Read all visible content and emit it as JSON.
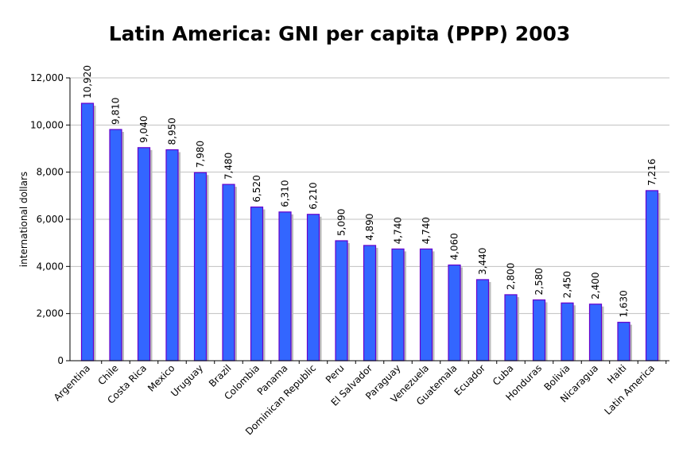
{
  "chart_data": {
    "type": "bar",
    "title": "Latin America: GNI per capita (PPP) 2003",
    "xlabel": "",
    "ylabel": "international dollars",
    "ylim": [
      0,
      12000
    ],
    "yticks": [
      "0",
      "2,000",
      "4,000",
      "6,000",
      "8,000",
      "10,000",
      "12,000"
    ],
    "grid": true,
    "legend": "none",
    "categories": [
      "Argentina",
      "Chile",
      "Costa Rica",
      "Mexico",
      "Uruguay",
      "Brazil",
      "Colombia",
      "Panama",
      "Dominican Republic",
      "Peru",
      "El Salvador",
      "Paraguay",
      "Venezuela",
      "Guatemala",
      "Ecuador",
      "Cuba",
      "Honduras",
      "Bolivia",
      "Nicaragua",
      "Haiti",
      "Latin America"
    ],
    "values": [
      10920,
      9810,
      9040,
      8950,
      7980,
      7480,
      6520,
      6310,
      6210,
      5090,
      4890,
      4740,
      4740,
      4060,
      3440,
      2800,
      2580,
      2450,
      2400,
      1630,
      7216
    ],
    "data_labels": [
      "10,920",
      "9,810",
      "9,040",
      "8,950",
      "7,980",
      "7,480",
      "6,520",
      "6,310",
      "6,210",
      "5,090",
      "4,890",
      "4,740",
      "4,740",
      "4,060",
      "3,440",
      "2,800",
      "2,580",
      "2,450",
      "2,400",
      "1,630",
      "7,216"
    ],
    "colors": {
      "bar_fill": "#3366ff",
      "bar_border": "#6600cc",
      "shadow": "#bbbbbb",
      "grid": "#c0c0c0"
    }
  }
}
